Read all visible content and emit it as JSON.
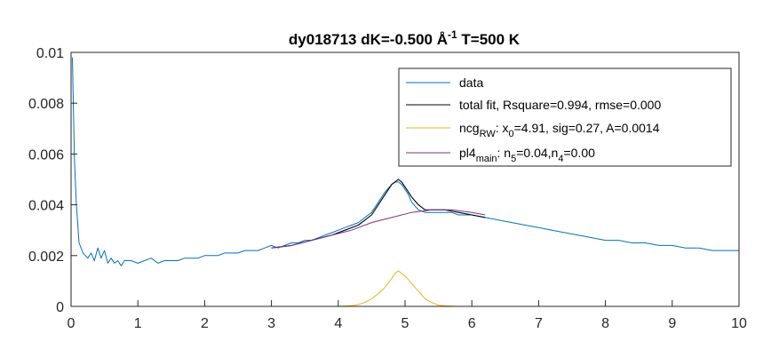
{
  "chart_data": {
    "type": "line",
    "title": {
      "prefix": "dy018713 dK=-0.500 Å",
      "sup": "-1",
      "suffix": " T=500 K"
    },
    "xlim": [
      0,
      10
    ],
    "ylim": [
      0,
      0.01
    ],
    "x_ticks": [
      "0",
      "1",
      "2",
      "3",
      "4",
      "5",
      "6",
      "7",
      "8",
      "9",
      "10"
    ],
    "y_ticks": [
      "0",
      "0.002",
      "0.004",
      "0.006",
      "0.008",
      "0.01"
    ],
    "grid": false,
    "legend_position": "top-right",
    "legend": [
      {
        "key": "data",
        "color": "#0072BD",
        "parts": [
          {
            "t": "data"
          }
        ]
      },
      {
        "key": "total",
        "color": "#000000",
        "parts": [
          {
            "t": "total fit, Rsquare=0.994, rmse=0.000"
          }
        ]
      },
      {
        "key": "ncg",
        "color": "#EDB120",
        "parts": [
          {
            "t": "ncg"
          },
          {
            "t": "RW",
            "sub": true
          },
          {
            "t": ": x"
          },
          {
            "t": "0",
            "sub": true
          },
          {
            "t": "=4.91, sig=0.27, A=0.0014"
          }
        ]
      },
      {
        "key": "pl4",
        "color": "#7E2F8E",
        "parts": [
          {
            "t": "pl4"
          },
          {
            "t": "main",
            "sub": true
          },
          {
            "t": ": n"
          },
          {
            "t": "5",
            "sub": true
          },
          {
            "t": "=0.04,n"
          },
          {
            "t": "4",
            "sub": true
          },
          {
            "t": "=0.00"
          }
        ]
      }
    ],
    "series": [
      {
        "key": "data",
        "color": "#0072BD",
        "x": [
          0.02,
          0.05,
          0.08,
          0.12,
          0.18,
          0.25,
          0.3,
          0.35,
          0.4,
          0.45,
          0.5,
          0.55,
          0.6,
          0.65,
          0.7,
          0.75,
          0.8,
          0.9,
          1.0,
          1.1,
          1.2,
          1.3,
          1.4,
          1.5,
          1.6,
          1.7,
          1.8,
          1.9,
          2.0,
          2.1,
          2.2,
          2.3,
          2.4,
          2.5,
          2.6,
          2.7,
          2.8,
          2.9,
          3.0,
          3.1,
          3.2,
          3.3,
          3.4,
          3.5,
          3.6,
          3.7,
          3.8,
          3.9,
          4.0,
          4.1,
          4.2,
          4.3,
          4.4,
          4.5,
          4.6,
          4.7,
          4.8,
          4.85,
          4.9,
          4.95,
          5.0,
          5.05,
          5.1,
          5.2,
          5.3,
          5.4,
          5.5,
          5.6,
          5.7,
          5.8,
          5.9,
          6.0,
          6.2,
          6.4,
          6.6,
          6.8,
          7.0,
          7.2,
          7.4,
          7.6,
          7.8,
          8.0,
          8.2,
          8.4,
          8.6,
          8.8,
          9.0,
          9.2,
          9.4,
          9.6,
          9.8,
          10.0
        ],
        "y": [
          0.0098,
          0.0058,
          0.004,
          0.0025,
          0.0021,
          0.0019,
          0.0021,
          0.0018,
          0.0023,
          0.0019,
          0.0022,
          0.0017,
          0.0019,
          0.0017,
          0.0018,
          0.0016,
          0.0018,
          0.0018,
          0.0017,
          0.0018,
          0.0019,
          0.0017,
          0.0018,
          0.0018,
          0.0018,
          0.0019,
          0.0019,
          0.0019,
          0.002,
          0.002,
          0.002,
          0.0021,
          0.0021,
          0.0021,
          0.0022,
          0.0022,
          0.0022,
          0.0023,
          0.0024,
          0.0023,
          0.0024,
          0.0025,
          0.0025,
          0.0026,
          0.0026,
          0.0027,
          0.0028,
          0.0029,
          0.003,
          0.0031,
          0.0032,
          0.0033,
          0.0035,
          0.0037,
          0.0041,
          0.0045,
          0.0048,
          0.0049,
          0.0049,
          0.0048,
          0.0046,
          0.0044,
          0.0041,
          0.0038,
          0.0037,
          0.0037,
          0.0037,
          0.0037,
          0.0037,
          0.0036,
          0.0036,
          0.0036,
          0.0035,
          0.0034,
          0.0033,
          0.0032,
          0.0031,
          0.003,
          0.0029,
          0.0028,
          0.0027,
          0.0026,
          0.0026,
          0.0025,
          0.0025,
          0.0024,
          0.0024,
          0.0023,
          0.0023,
          0.0022,
          0.0022,
          0.0022
        ]
      },
      {
        "key": "total",
        "color": "#000000",
        "x": [
          3.0,
          3.3,
          3.6,
          3.9,
          4.1,
          4.3,
          4.4,
          4.5,
          4.6,
          4.7,
          4.8,
          4.85,
          4.9,
          4.95,
          5.0,
          5.05,
          5.1,
          5.2,
          5.3,
          5.4,
          5.5,
          5.6,
          5.8,
          6.0,
          6.2
        ],
        "y": [
          0.0023,
          0.0024,
          0.0026,
          0.0028,
          0.003,
          0.0032,
          0.0034,
          0.0036,
          0.004,
          0.0044,
          0.0048,
          0.0049,
          0.005,
          0.0049,
          0.0047,
          0.0045,
          0.0043,
          0.004,
          0.0038,
          0.0038,
          0.0038,
          0.0038,
          0.0037,
          0.0036,
          0.0035
        ]
      },
      {
        "key": "ncg",
        "color": "#EDB120",
        "x": [
          3.0,
          3.5,
          4.0,
          4.2,
          4.3,
          4.4,
          4.5,
          4.6,
          4.7,
          4.8,
          4.85,
          4.9,
          4.95,
          5.0,
          5.1,
          5.2,
          5.3,
          5.4,
          5.5,
          5.6,
          5.8,
          6.0,
          6.5,
          7.0
        ],
        "y": [
          0,
          0,
          0,
          3e-05,
          7e-05,
          0.00016,
          0.0003,
          0.0005,
          0.00075,
          0.0011,
          0.0013,
          0.0014,
          0.0013,
          0.0012,
          0.0009,
          0.0006,
          0.0003,
          0.00015,
          5e-05,
          2e-05,
          0,
          0,
          0,
          0
        ]
      },
      {
        "key": "pl4",
        "color": "#7E2F8E",
        "x": [
          3.0,
          3.3,
          3.6,
          3.9,
          4.2,
          4.5,
          4.8,
          5.1,
          5.4,
          5.7,
          6.0,
          6.2
        ],
        "y": [
          0.0023,
          0.0024,
          0.0026,
          0.0028,
          0.003,
          0.0033,
          0.0035,
          0.0037,
          0.0038,
          0.0038,
          0.0037,
          0.0036
        ]
      }
    ]
  }
}
